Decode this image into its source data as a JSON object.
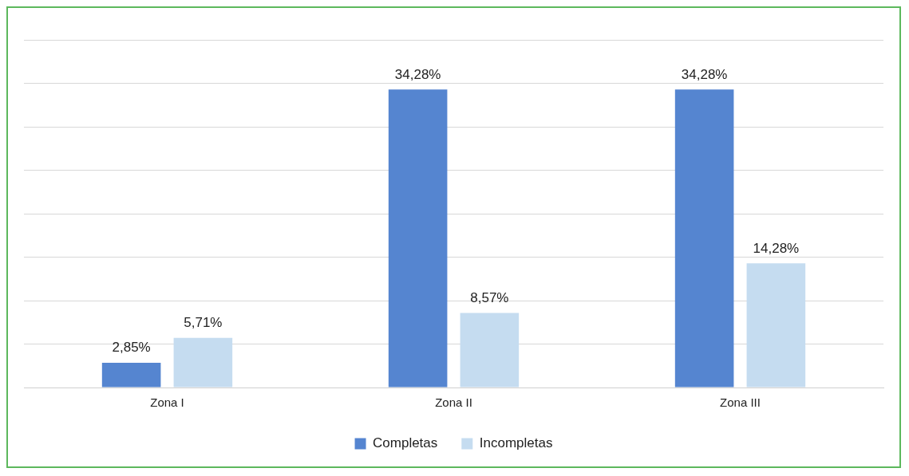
{
  "chart_data": {
    "type": "bar",
    "categories": [
      "Zona I",
      "Zona II",
      "Zona III"
    ],
    "series": [
      {
        "name": "Completas",
        "color": "#5585d0",
        "values": [
          2.85,
          34.28,
          34.28
        ],
        "value_labels": [
          "2,85%",
          "34,28%",
          "34,28%"
        ]
      },
      {
        "name": "Incompletas",
        "color": "#c5dcf0",
        "values": [
          5.71,
          8.57,
          14.28
        ],
        "value_labels": [
          "5,71%",
          "8,57%",
          "14,28%"
        ]
      }
    ],
    "ylim": [
      0,
      40
    ],
    "yticks": [
      {
        "value": 0,
        "label": null
      },
      {
        "value": 5,
        "label": null
      },
      {
        "value": 10,
        "label": null
      },
      {
        "value": 15,
        "label": null
      },
      {
        "value": 20,
        "label": null
      },
      {
        "value": 25,
        "label": null
      },
      {
        "value": 30,
        "label": null
      },
      {
        "value": 35,
        "label": null
      },
      {
        "value": 40,
        "label": null
      }
    ],
    "grid": "y",
    "legend": "bottom",
    "tick_labels": "x"
  }
}
